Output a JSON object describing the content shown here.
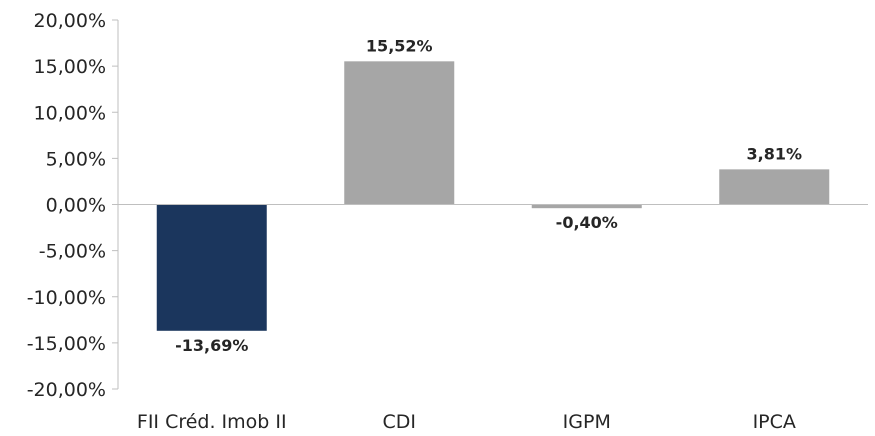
{
  "chart_data": {
    "type": "bar",
    "categories": [
      "FII Créd. Imob II",
      "CDI",
      "IGPM",
      "IPCA"
    ],
    "values": [
      -13.69,
      15.52,
      -0.4,
      3.81
    ],
    "value_labels": [
      "-13,69%",
      "15,52%",
      "-0,40%",
      "3,81%"
    ],
    "colors": [
      "#1b365d",
      "#a6a6a6",
      "#a6a6a6",
      "#a6a6a6"
    ],
    "ylim": [
      -20,
      20
    ],
    "yticks": [
      20,
      15,
      10,
      5,
      0,
      -5,
      -10,
      -15,
      -20
    ],
    "ytick_labels": [
      "20,00%",
      "15,00%",
      "10,00%",
      "5,00%",
      "0,00%",
      "-5,00%",
      "-10,00%",
      "-15,00%",
      "-20,00%"
    ],
    "grid": false,
    "legend": "none",
    "axis_color": "#bfbfbf"
  }
}
